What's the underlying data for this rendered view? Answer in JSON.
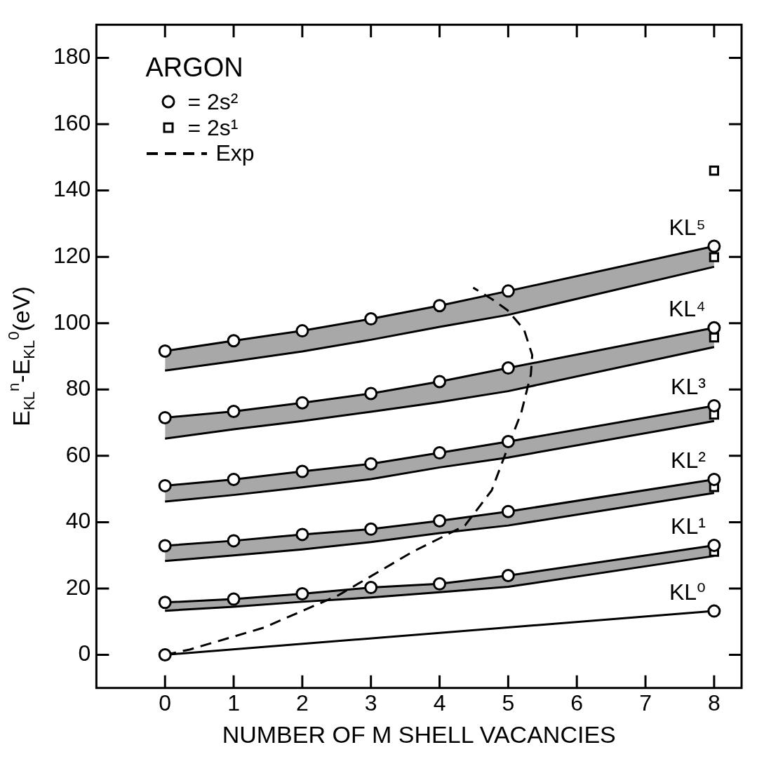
{
  "chart_data": {
    "type": "line",
    "xlabel": "NUMBER OF M SHELL VACANCIES",
    "ylabel": "E$_{KL}$$^{n}$-E$_{KL}$$^{0}$(eV)",
    "legend_title": "ARGON",
    "legend": "top left",
    "grid": false,
    "xlim": [
      -1,
      8.4
    ],
    "xticks": [
      0,
      1,
      2,
      3,
      4,
      5,
      6,
      7,
      8
    ],
    "ylim": [
      -10,
      190
    ],
    "yticks": [
      0,
      20,
      40,
      60,
      80,
      100,
      120,
      140,
      160,
      180
    ],
    "annotations": [
      "KL⁰",
      "KL¹",
      "KL²",
      "KL³",
      "KL⁴",
      "KL⁵"
    ],
    "series": [
      {
        "color": "#000000",
        "marker": "none",
        "line_style": "solid",
        "x": [
          0,
          8
        ],
        "values": [
          0,
          13.2
        ]
      },
      {
        "color": "#000000",
        "marker": "none",
        "line_style": "solid",
        "x": [
          0,
          1,
          2,
          3,
          4,
          5,
          8
        ],
        "values": [
          15.8,
          16.8,
          18.4,
          20.3,
          21.4,
          23.9,
          33.0
        ],
        "upper": [
          15.8,
          16.8,
          18.4,
          20.3,
          21.4,
          23.9,
          33.0
        ],
        "lower": [
          13.3,
          14.5,
          16,
          17.3,
          18.9,
          20.5,
          29.8
        ]
      },
      {
        "color": "#000000",
        "marker": "none",
        "line_style": "solid",
        "x": [
          0,
          1,
          2,
          3,
          4,
          5,
          8
        ],
        "values": [
          32.9,
          34.4,
          36.3,
          37.9,
          40.4,
          43.2,
          52.9
        ],
        "upper": [
          32.9,
          34.4,
          36.3,
          37.9,
          40.4,
          43.2,
          52.9
        ],
        "lower": [
          28.3,
          30,
          31.8,
          34,
          36.7,
          39,
          48.8
        ]
      },
      {
        "color": "#000000",
        "marker": "none",
        "line_style": "solid",
        "x": [
          0,
          1,
          2,
          3,
          4,
          5,
          8
        ],
        "values": [
          51.0,
          52.9,
          55.3,
          57.6,
          60.9,
          64.3,
          75.1
        ],
        "upper": [
          51.0,
          52.9,
          55.3,
          57.6,
          60.9,
          64.3,
          75.1
        ],
        "lower": [
          46.2,
          48.2,
          50.5,
          53,
          56.5,
          59.5,
          70.5
        ]
      },
      {
        "color": "#000000",
        "marker": "none",
        "line_style": "solid",
        "x": [
          0,
          1,
          2,
          3,
          4,
          5,
          8
        ],
        "values": [
          71.5,
          73.4,
          76.0,
          78.8,
          82.4,
          86.5,
          98.6
        ],
        "upper": [
          71.5,
          73.4,
          76.0,
          78.8,
          82.4,
          86.5,
          98.6
        ],
        "lower": [
          65.2,
          68,
          70.5,
          73.3,
          76.2,
          79.5,
          92.8
        ]
      },
      {
        "color": "#000000",
        "marker": "none",
        "line_style": "solid",
        "x": [
          0,
          1,
          2,
          3,
          4,
          5,
          8
        ],
        "values": [
          91.6,
          94.7,
          97.7,
          101.3,
          105.3,
          109.7,
          123.2
        ],
        "upper": [
          91.6,
          94.7,
          97.7,
          101.3,
          105.3,
          109.7,
          123.2
        ],
        "lower": [
          85.7,
          88.5,
          91.5,
          95,
          98.9,
          102.5,
          117
        ]
      },
      {
        "name": "Exp",
        "color": "#000000",
        "marker": "none",
        "line_style": "dashed",
        "x": [
          0,
          0.36,
          1.44,
          2.53,
          3.61,
          3.97,
          4.37,
          4.76,
          4.99,
          5.19,
          5.33,
          5.35,
          5.23,
          4.99,
          4.76,
          4.49
        ],
        "values": [
          0,
          1.6,
          8.2,
          18,
          31.1,
          34.8,
          39,
          49.6,
          62.3,
          73,
          84.5,
          90.4,
          98.1,
          103.9,
          107.3,
          110.7
        ]
      },
      {
        "name": "= 2s²",
        "type": "scatter",
        "color": "#000000",
        "marker": "circle",
        "x": [
          0,
          8,
          0,
          1,
          2,
          3,
          4,
          5,
          8,
          0,
          1,
          2,
          3,
          4,
          5,
          8,
          0,
          1,
          2,
          3,
          4,
          5,
          8,
          0,
          1,
          2,
          3,
          4,
          5,
          8,
          0,
          1,
          2,
          3,
          4,
          5,
          8
        ],
        "values": [
          0,
          13.2,
          15.8,
          16.8,
          18.4,
          20.3,
          21.4,
          23.9,
          33.0,
          32.9,
          34.4,
          36.3,
          37.9,
          40.4,
          43.2,
          52.9,
          51.0,
          52.9,
          55.3,
          57.6,
          60.9,
          64.3,
          75.1,
          71.5,
          73.4,
          76.0,
          78.8,
          82.4,
          86.5,
          98.6,
          91.6,
          94.7,
          97.7,
          101.3,
          105.3,
          109.7,
          123.2
        ]
      },
      {
        "name": "= 2s¹",
        "type": "scatter",
        "color": "#000000",
        "marker": "square",
        "x": [
          8,
          8,
          8,
          8,
          8,
          8
        ],
        "values": [
          31.1,
          50.6,
          72.4,
          95.7,
          119.9,
          146
        ]
      }
    ]
  }
}
